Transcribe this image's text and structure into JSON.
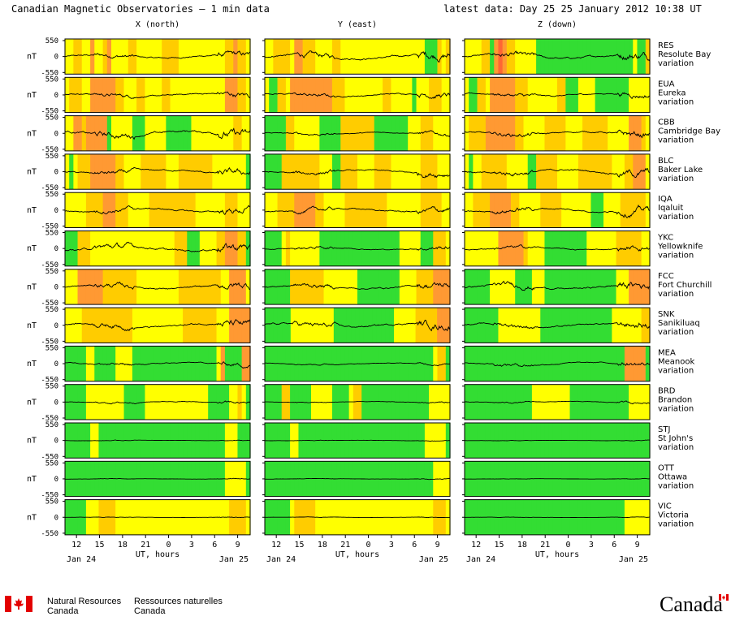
{
  "title": "Canadian Magnetic Observatories – 1 min data",
  "latest": "latest data: Day  25   25 January 2012 10:38 UT",
  "columns": [
    "X (north)",
    "Y (east)",
    "Z (down)"
  ],
  "unit": "nT",
  "yticks": [
    "550",
    "0",
    "-550"
  ],
  "xticks": [
    "12",
    "15",
    "18",
    "21",
    "0",
    "3",
    "6",
    "9"
  ],
  "xlabel": "UT, hours",
  "date_start": "Jan 24",
  "date_end": "Jan 25",
  "colors": {
    "quiet": "#33dd33",
    "unsettled": "#ffff00",
    "active": "#ffcc00",
    "storm": "#ff9933",
    "major": "#ff6633"
  },
  "footer": {
    "en_line1": "Natural Resources",
    "en_line2": "Canada",
    "fr_line1": "Ressources naturelles",
    "fr_line2": "Canada",
    "wordmark": "Canada"
  },
  "chart_data": {
    "type": "line",
    "x_range_hours": [
      10.5,
      34.63
    ],
    "ylim": [
      -550,
      550
    ],
    "stations": [
      {
        "code": "RES",
        "name": "Resolute Bay",
        "label": "variation",
        "amplitude": [
          0.55,
          0.75,
          0.75
        ],
        "activity": "xxxxsxxxxxxxxxxxxxxxxxxaxxxxxxxxxxxxxxxxxxxxxxxxxxxxxxxxxxxxxxxxxxxxxxx"
      },
      {
        "code": "EUA",
        "name": "Eureka",
        "label": "variation",
        "amplitude": [
          0.5,
          0.5,
          0.5
        ],
        "activity": ""
      },
      {
        "code": "CBB",
        "name": "Cambridge Bay",
        "label": "variation",
        "amplitude": [
          0.85,
          0.35,
          0.6
        ],
        "activity": ""
      },
      {
        "code": "BLC",
        "name": "Baker Lake",
        "label": "variation",
        "amplitude": [
          0.6,
          0.55,
          0.7
        ],
        "activity": ""
      },
      {
        "code": "IQA",
        "name": "Iqaluit",
        "label": "variation",
        "amplitude": [
          0.6,
          0.55,
          0.65
        ],
        "activity": ""
      },
      {
        "code": "YKC",
        "name": "Yellowknife",
        "label": "variation",
        "amplitude": [
          0.8,
          0.4,
          0.45
        ],
        "activity": ""
      },
      {
        "code": "FCC",
        "name": "Fort Churchill",
        "label": "variation",
        "amplitude": [
          0.65,
          0.6,
          0.7
        ],
        "activity": ""
      },
      {
        "code": "SNK",
        "name": "Sanikiluaq",
        "label": "variation",
        "amplitude": [
          0.7,
          0.7,
          0.6
        ],
        "activity": ""
      },
      {
        "code": "MEA",
        "name": "Meanook",
        "label": "variation",
        "amplitude": [
          0.4,
          0.2,
          0.45
        ],
        "activity": ""
      },
      {
        "code": "BRD",
        "name": "Brandon",
        "label": "variation",
        "amplitude": [
          0.25,
          0.15,
          0.2
        ],
        "activity": ""
      },
      {
        "code": "STJ",
        "name": "St John's",
        "label": "variation",
        "amplitude": [
          0.08,
          0.08,
          0.06
        ],
        "activity": ""
      },
      {
        "code": "OTT",
        "name": "Ottawa",
        "label": "variation",
        "amplitude": [
          0.08,
          0.08,
          0.06
        ],
        "activity": ""
      },
      {
        "code": "VIC",
        "name": "Victoria",
        "label": "variation",
        "amplitude": [
          0.06,
          0.06,
          0.05
        ],
        "activity": ""
      }
    ],
    "activity_bands": [
      [
        "yyaayysyyasyyyyaayyyyyyaaaayyyyyyyyyyyaasaay",
        "yyaaaayssaaayyyyaayyyyyyyyyyyyyyyyyyyygggaya",
        "yyyyaagsmsaayyyyygggggggggggggggggggggggygga"
      ],
      [
        "yaaayyssssssaayyyaayyyyaayyyyyyyyyyyyysssaay",
        "yggaayssssssssssaaayyyyyyyyyaayyyyygyyyaaayy",
        "yggaayssssssaaayyyyyyyaagggyyyyggggggggyyyyy"
      ],
      [
        "yyssasssssgyyyyygggyyyyyggggggyyyyyyyyyyaayy",
        "gggggaayyyyyygggggaaaaaaaaggggggggyyyaaayyyy",
        "yaaaasssssssaayyyyyaaaaayyyyaaaaaayyyyysssay"
      ],
      [
        "ygyaaassssssaayyyyaaaaaayyyaaaaaaaayyyyyyyyg",
        "ggggaaaaaaaaayyyggaaaayyyyaaaayyyyyyyaaaayyy",
        "ygyyaaaaaayyyyyggaaaaayyyyyaaaaaaaayyyaasssy"
      ],
      [
        "yyyyyaaaasssaaayyyyyaaaaaaaaaaayyyyyyyaaayyy",
        "yyyaaaasssssaayyyyyaaaaaaaaaayyyyyyyyaaaaayy",
        "yyaaaasssssaayyyyyaaaaayyyyyyygggyyyyaaaaaay"
      ],
      [
        "gggaaayyyyyyyyyyyyyyyyyyyyaaagggyyyyaasssaag",
        "ggggyayyyyyyygggggggggggggggggggyyyyygggaaay",
        "yyyyyyyyssssssayyyyggggggggggyyyyyyyaaaaaayy"
      ],
      [
        "yyyssssssaaaaaaaayyyyyyyyyyaaaaaaaaaayyssssy",
        "ggggggaaaaaaaayyyyyyyyggggggggggyyyyaaaassss",
        "ggggggyyyyyyggggyyygggggggggggggggggyyysssss"
      ],
      [
        "yyyyaaaaaaaaaaaayyyyyyyyyyyyaaaaaaaayyysssss",
        "ggggggyyyyyyyyyyggggggggggggggyyyyyaaaaasss",
        "ggggggggyyyyyyyyyygggggggggggggggggyyyyyyyaa"
      ],
      [
        "gggggyygggggyyyyggggggggggggggggggggysggggss",
        "ggggggggggggggggggggggggggggggggggggggggyaag",
        "ggggggggggggggggggggggggggggggggggggggsssssg"
      ],
      [
        "gggggyyyyyyyyygggggyyyyyyyyyyyyyyygggggyyayg",
        "ggggaagggggyyyyyggggyaaggggggggggggggggyyyyy",
        "ggggggggggggggggyyyyyyyyyggggggggggggggyyyyy"
      ],
      [
        "ggggggyyggggggggggggggggggggggggggggggyyyggg",
        "ggggggyyggggggggggggggggggggggggggggggyyyyyg",
        "gggggggggggggggggggggggggggggggggggggggggggg"
      ],
      [
        "ggggggggggggggggggggggggggggggggggggggyyyyyg",
        "ggggggggggggggggggggggggggggggggggggggggyyyy",
        "gggggggggggggggggggggggggggggggggggggggggggg"
      ],
      [
        "gggggyyyaaaayyyyyyyyyyyyyyyyyyyyyyyyyyyaaaay",
        "ggggggyaaaaayyyyyyyyyyyyyyyyyyyyyyyyyyyyaaay",
        "ggggggggggggggggggggggggggggggggggggggyyyyyy"
      ]
    ]
  }
}
